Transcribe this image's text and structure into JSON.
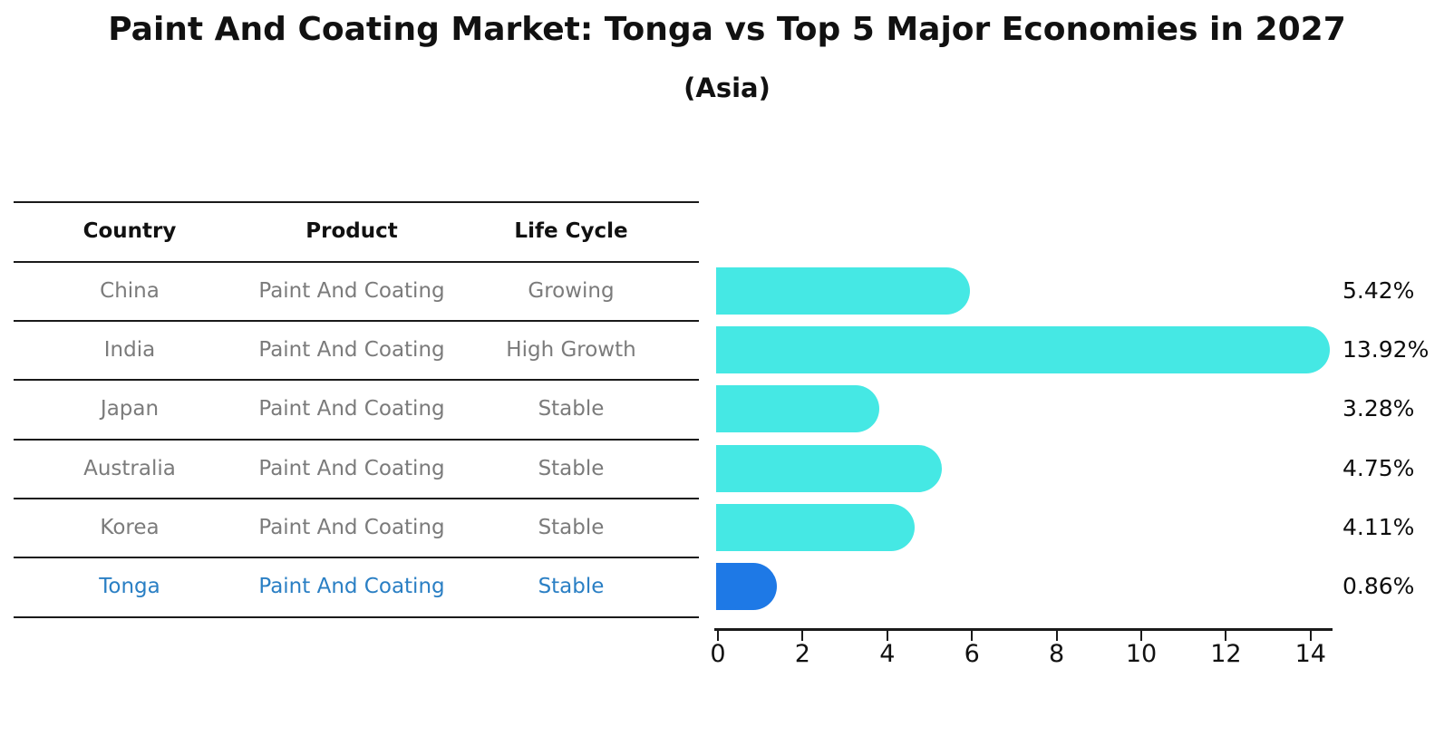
{
  "title": "Paint And Coating Market: Tonga vs Top 5 Major Economies in 2027",
  "subtitle": "(Asia)",
  "table": {
    "headers": [
      "Country",
      "Product",
      "Life Cycle"
    ],
    "rows": [
      {
        "country": "China",
        "product": "Paint And Coating",
        "life_cycle": "Growing",
        "highlight": false
      },
      {
        "country": "India",
        "product": "Paint And Coating",
        "life_cycle": "High Growth",
        "highlight": false
      },
      {
        "country": "Japan",
        "product": "Paint And Coating",
        "life_cycle": "Stable",
        "highlight": false
      },
      {
        "country": "Australia",
        "product": "Paint And Coating",
        "life_cycle": "Stable",
        "highlight": false
      },
      {
        "country": "Korea",
        "product": "Paint And Coating",
        "life_cycle": "Stable",
        "highlight": false
      },
      {
        "country": "Tonga",
        "product": "Paint And Coating",
        "life_cycle": "Stable",
        "highlight": true
      }
    ]
  },
  "chart_data": {
    "type": "bar",
    "orientation": "horizontal",
    "title": "Paint And Coating Market: Tonga vs Top 5 Major Economies in 2027",
    "subtitle": "(Asia)",
    "categories": [
      "China",
      "India",
      "Japan",
      "Australia",
      "Korea",
      "Tonga"
    ],
    "values": [
      5.42,
      13.92,
      3.28,
      4.75,
      4.11,
      0.86
    ],
    "value_labels": [
      "5.42%",
      "13.92%",
      "3.28%",
      "4.75%",
      "4.11%",
      "0.86%"
    ],
    "x_ticks": [
      0,
      2,
      4,
      6,
      8,
      10,
      12,
      14
    ],
    "xlim": [
      0,
      14.5
    ],
    "grid": false,
    "legend": false,
    "bar_color": "#45e8e4",
    "highlight_color": "#1e79e6",
    "highlight_text_color": "#2a7fc4",
    "highlight_index": 5
  }
}
